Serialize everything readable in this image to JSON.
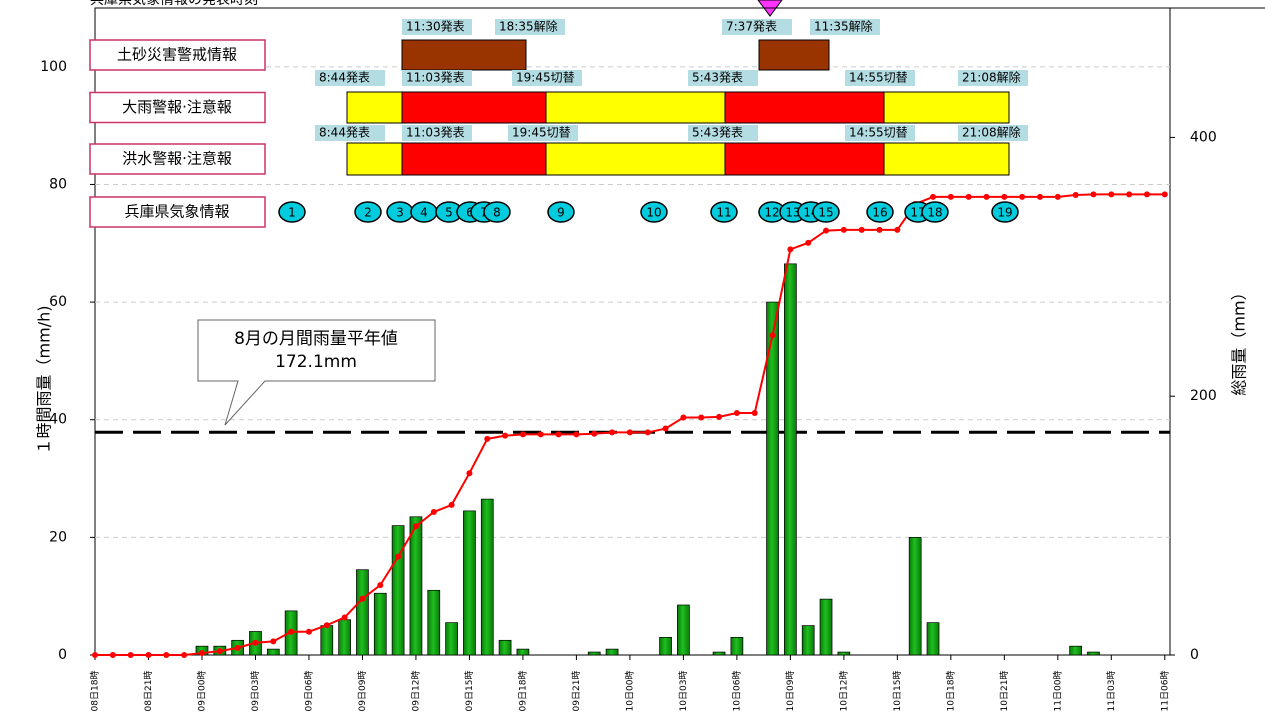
{
  "chart_data": {
    "type": "bar",
    "header": "兵庫県気象情報の発表時刻",
    "ylabel": "１時間雨量（mm/h)",
    "y2label": "総雨量（mm）",
    "categories": [
      "08日18時",
      null,
      null,
      "08日21時",
      null,
      null,
      "09日00時",
      null,
      null,
      "09日03時",
      null,
      null,
      "09日06時",
      null,
      null,
      "09日09時",
      null,
      null,
      "09日12時",
      null,
      null,
      "09日15時",
      null,
      null,
      "09日18時",
      null,
      null,
      "09日21時",
      null,
      null,
      "10日00時",
      null,
      null,
      "10日03時",
      null,
      null,
      "10日06時",
      null,
      null,
      "10日09時",
      null,
      null,
      "10日12時",
      null,
      null,
      "10日15時",
      null,
      null,
      "10日18時",
      null,
      null,
      "10日21時",
      null,
      null,
      "11日00時",
      null,
      null,
      "11日03時",
      null,
      null,
      "11日06時"
    ],
    "series": [
      {
        "type": "bar",
        "color": "#1fbf1f",
        "values": [
          0,
          0,
          0,
          0,
          0,
          0,
          1.5,
          1.5,
          2.5,
          4,
          1,
          7.5,
          0,
          5,
          6,
          14.5,
          10.5,
          22,
          23.5,
          11,
          5.5,
          24.5,
          26.5,
          2.5,
          1,
          0,
          0,
          0,
          0.5,
          1,
          0,
          0,
          3,
          8.5,
          0,
          0.5,
          3,
          0,
          60,
          66.5,
          5,
          9.5,
          0.5,
          0,
          0,
          0,
          20,
          5.5,
          0,
          0,
          0,
          0,
          0,
          0,
          0,
          1.5,
          0.5,
          0,
          0,
          0,
          0
        ]
      },
      {
        "type": "line",
        "axis": "y2",
        "color": "#ff0000",
        "values": [
          0,
          0,
          0,
          0,
          0,
          0,
          1.5,
          3,
          5.5,
          9.5,
          10.5,
          18,
          18,
          23,
          29,
          43.5,
          54,
          76,
          99.5,
          110.5,
          116,
          140.5,
          167,
          169.5,
          170.5,
          170.5,
          170.5,
          170.5,
          171,
          172,
          172,
          172,
          175,
          183.5,
          183.5,
          184,
          187,
          187,
          247,
          313.5,
          318.5,
          328,
          328.5,
          328.5,
          328.5,
          328.5,
          348.5,
          354,
          354,
          354,
          354,
          354,
          354,
          354,
          354,
          355.5,
          356,
          356,
          356,
          356,
          356
        ]
      }
    ],
    "ylim": [
      0,
      110
    ],
    "yticks": [
      0,
      20,
      40,
      60,
      80,
      100
    ],
    "y2lim": [
      0,
      500
    ],
    "y2ticks": [
      0,
      200,
      400
    ],
    "grid": true,
    "annotation": {
      "label": "8月の月間雨量平年値",
      "value": 172.1,
      "value_label": "172.1mm",
      "axis": "y2"
    },
    "warnings": [
      {
        "name": "土砂災害警戒情報",
        "labels": [
          "11:30発表",
          "18:35解除",
          "7:37発表",
          "11:35解除"
        ]
      },
      {
        "name": "大雨警報·注意報",
        "labels": [
          "8:44発表",
          "11:03発表",
          "19:45切替",
          "5:43発表",
          "14:55切替",
          "21:08解除"
        ]
      },
      {
        "name": "洪水警報·注意報",
        "labels": [
          "8:44発表",
          "11:03発表",
          "19:45切替",
          "5:43発表",
          "14:55切替",
          "21:08解除"
        ]
      }
    ],
    "info": {
      "name": "兵庫県気象情報",
      "labels": [
        "1",
        "2",
        "3",
        "4",
        "5",
        "6",
        "7",
        "8",
        "9",
        "10",
        "11",
        "12",
        "13",
        "14",
        "15",
        "16",
        "17",
        "18",
        "19"
      ]
    }
  }
}
